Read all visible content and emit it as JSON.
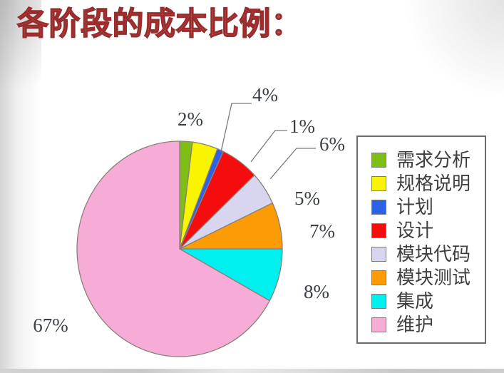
{
  "title": "各阶段的成本比例：",
  "chart_data": {
    "type": "pie",
    "title": "各阶段的成本比例：",
    "legend_position": "right",
    "start_angle_deg": 0,
    "direction": "clockwise",
    "slices": [
      {
        "label": "需求分析",
        "value_pct": 2,
        "data_label": "2%",
        "color": "#7FBE14"
      },
      {
        "label": "规格说明",
        "value_pct": 4,
        "data_label": "4%",
        "color": "#F9F500"
      },
      {
        "label": "计划",
        "value_pct": 1,
        "data_label": "1%",
        "color": "#2C63E6"
      },
      {
        "label": "设计",
        "value_pct": 6,
        "data_label": "6%",
        "color": "#F50C0C"
      },
      {
        "label": "模块代码",
        "value_pct": 5,
        "data_label": "5%",
        "color": "#D7D5F0"
      },
      {
        "label": "模块测试",
        "value_pct": 7,
        "data_label": "7%",
        "color": "#FB9B06"
      },
      {
        "label": "集成",
        "value_pct": 8,
        "data_label": "8%",
        "color": "#00F0F0"
      },
      {
        "label": "维护",
        "value_pct": 67,
        "data_label": "67%",
        "color": "#F7ABD7"
      }
    ]
  },
  "colors": {
    "title_fill": "#C05151",
    "title_outline": "#982B2B",
    "percent_label_text": "#3A4048",
    "slice_stroke": "#8B8078",
    "leader_line": "#7A7A7A",
    "legend_border": "#6B6B6B",
    "legend_text": "#3F3F3F"
  }
}
